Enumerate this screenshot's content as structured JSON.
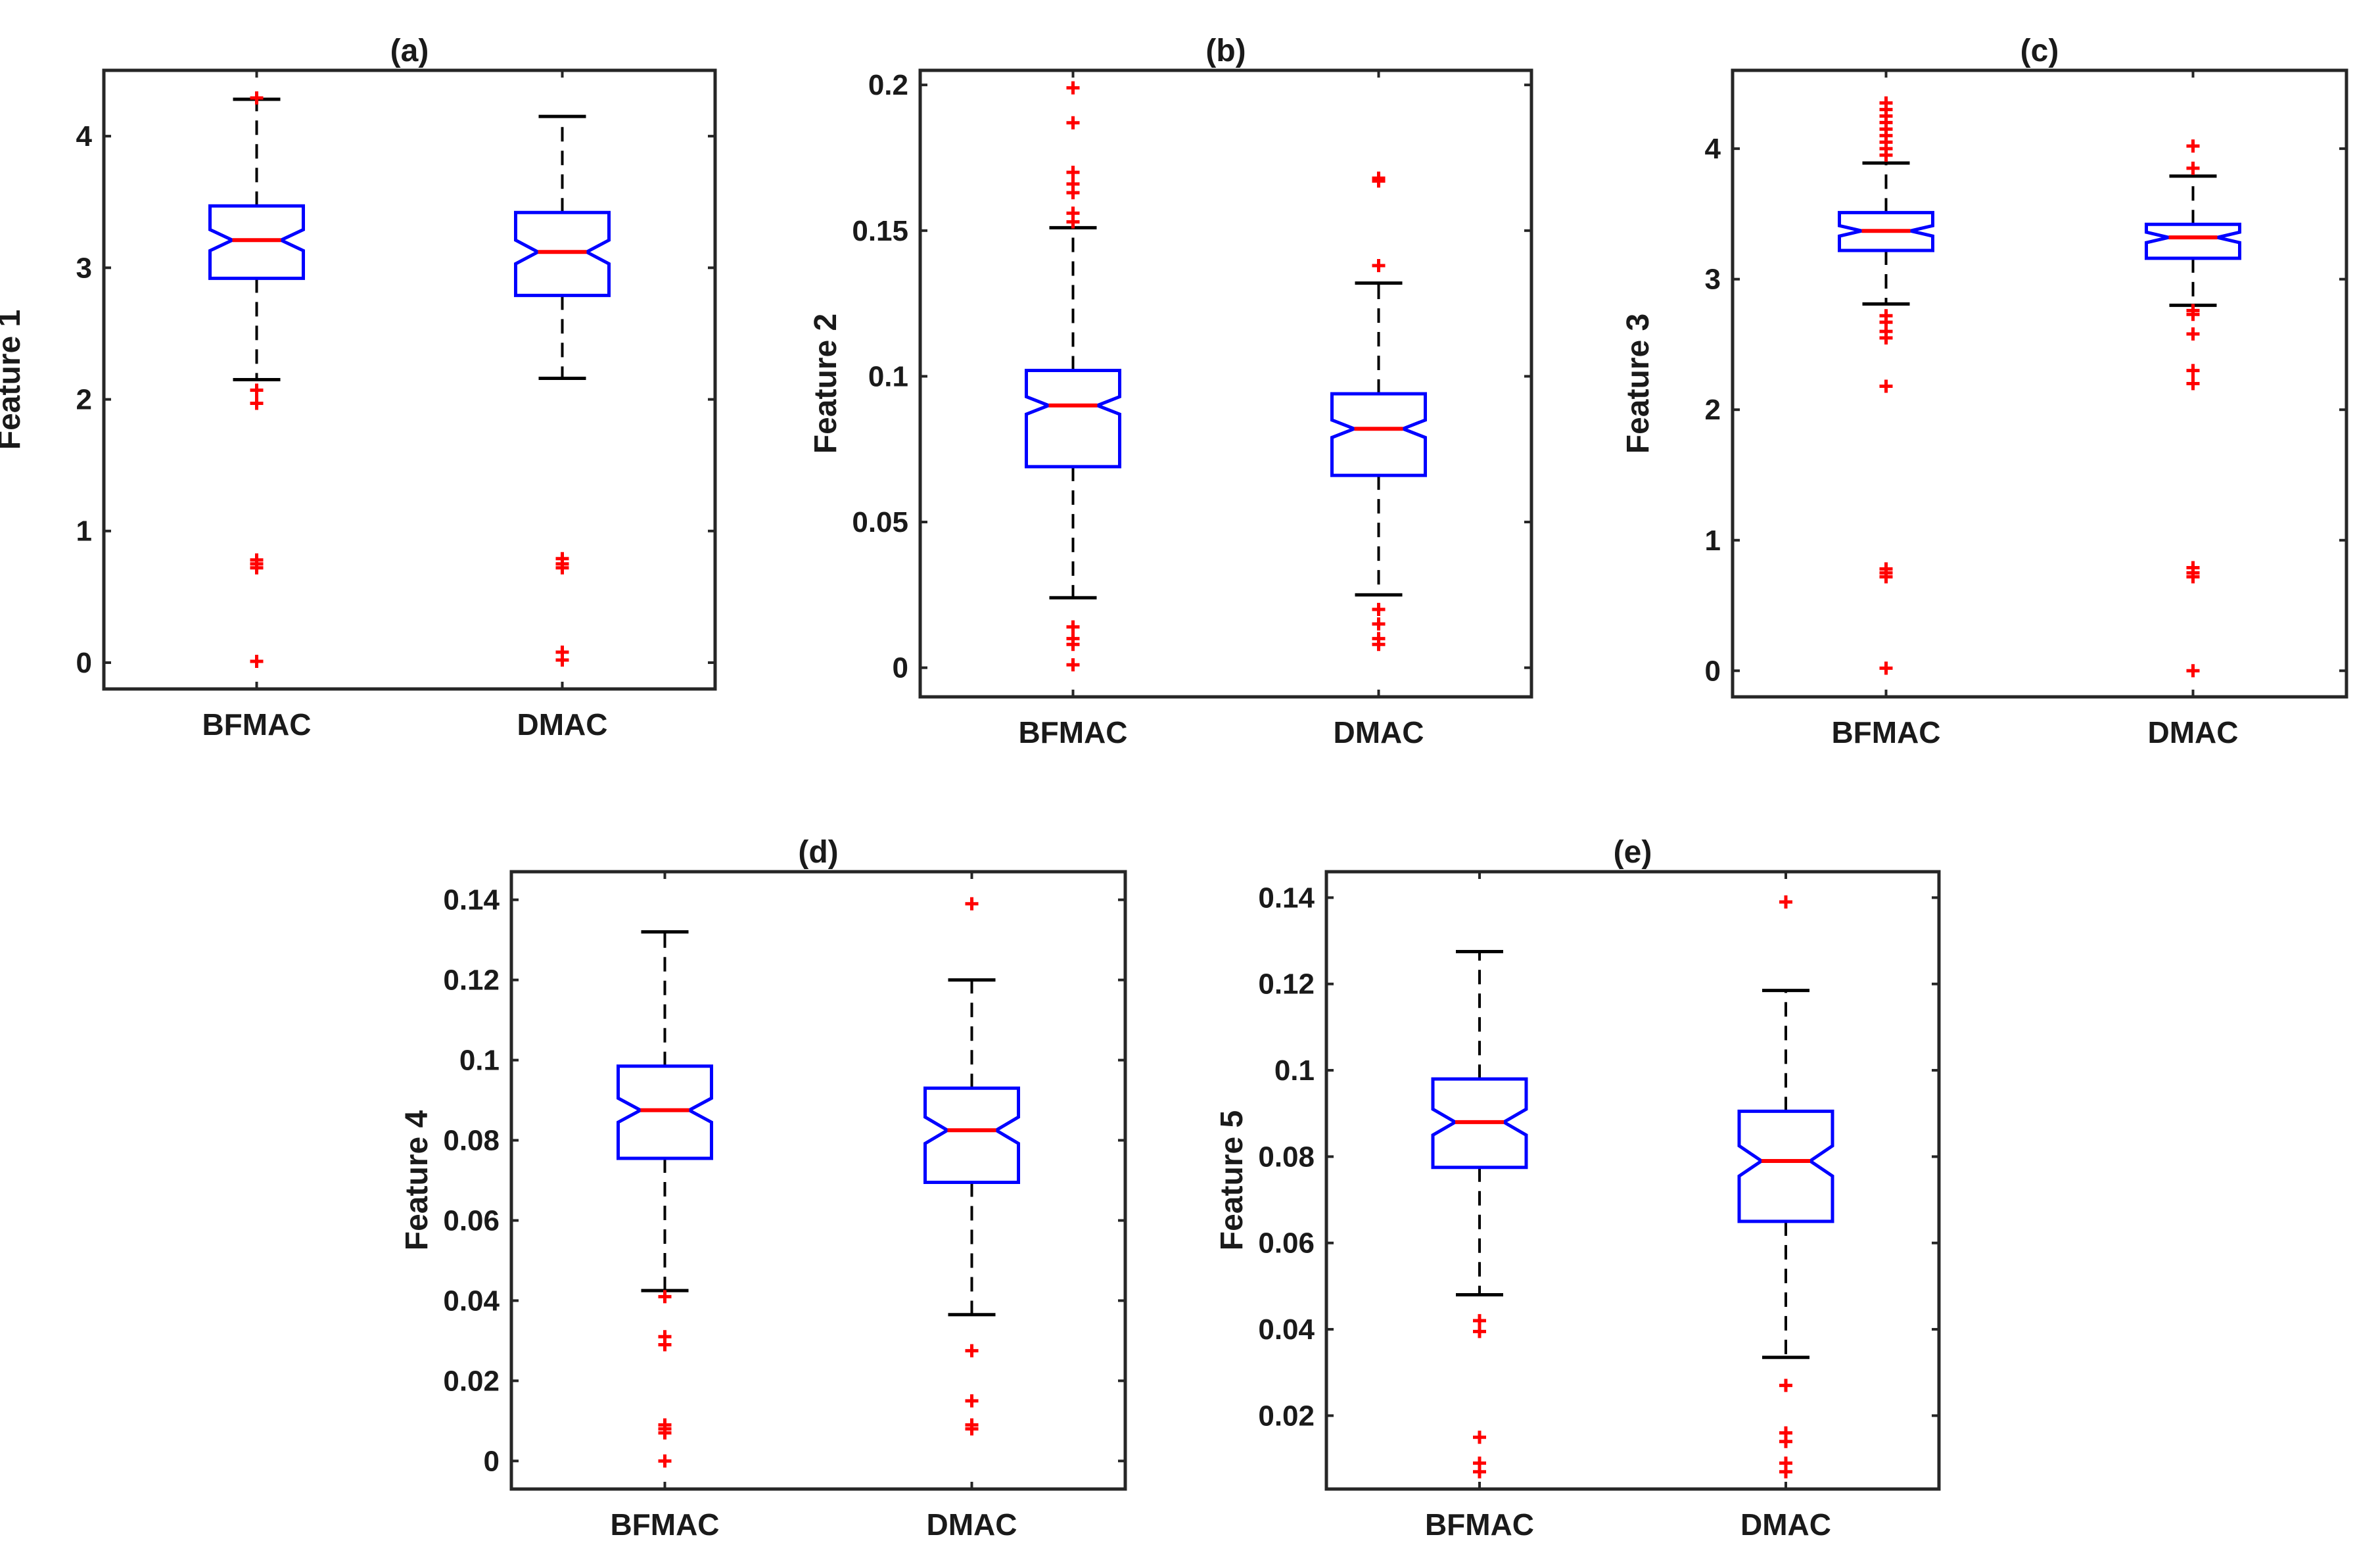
{
  "chart_data": [
    {
      "type": "boxplot",
      "title": "(a)",
      "ylabel": "Feature 1",
      "categories": [
        "BFMAC",
        "DMAC"
      ],
      "ylim": [
        -0.2,
        4.5
      ],
      "yticks": [
        0,
        1,
        2,
        3,
        4
      ],
      "ytick_labels": [
        "0",
        "1",
        "2",
        "3",
        "4"
      ],
      "boxes": [
        {
          "name": "BFMAC",
          "lower_whisker": 2.15,
          "q1": 2.92,
          "median": 3.21,
          "q3": 3.47,
          "notch_low": 3.13,
          "notch_high": 3.29,
          "upper_whisker": 4.28,
          "outliers": [
            4.29,
            2.07,
            1.97,
            0.78,
            0.75,
            0.72,
            0.01
          ]
        },
        {
          "name": "DMAC",
          "lower_whisker": 2.16,
          "q1": 2.79,
          "median": 3.12,
          "q3": 3.42,
          "notch_low": 3.03,
          "notch_high": 3.21,
          "upper_whisker": 4.15,
          "outliers": [
            0.79,
            0.75,
            0.72,
            0.08,
            0.02
          ]
        }
      ]
    },
    {
      "type": "boxplot",
      "title": "(b)",
      "ylabel": "Feature 2",
      "categories": [
        "BFMAC",
        "DMAC"
      ],
      "ylim": [
        -0.01,
        0.205
      ],
      "yticks": [
        0,
        0.05,
        0.1,
        0.15,
        0.2
      ],
      "ytick_labels": [
        "0",
        "0.05",
        "0.1",
        "0.15",
        "0.2"
      ],
      "boxes": [
        {
          "name": "BFMAC",
          "lower_whisker": 0.024,
          "q1": 0.069,
          "median": 0.09,
          "q3": 0.102,
          "notch_low": 0.087,
          "notch_high": 0.093,
          "upper_whisker": 0.151,
          "outliers": [
            0.199,
            0.187,
            0.17,
            0.166,
            0.163,
            0.156,
            0.153,
            0.014,
            0.01,
            0.008,
            0.001
          ]
        },
        {
          "name": "DMAC",
          "lower_whisker": 0.025,
          "q1": 0.066,
          "median": 0.082,
          "q3": 0.094,
          "notch_low": 0.079,
          "notch_high": 0.085,
          "upper_whisker": 0.132,
          "outliers": [
            0.168,
            0.167,
            0.138,
            0.02,
            0.015,
            0.01,
            0.008
          ]
        }
      ]
    },
    {
      "type": "boxplot",
      "title": "(c)",
      "ylabel": "Feature 3",
      "categories": [
        "BFMAC",
        "DMAC"
      ],
      "ylim": [
        -0.2,
        4.6
      ],
      "yticks": [
        0,
        1,
        2,
        3,
        4
      ],
      "ytick_labels": [
        "0",
        "1",
        "2",
        "3",
        "4"
      ],
      "boxes": [
        {
          "name": "BFMAC",
          "lower_whisker": 2.81,
          "q1": 3.22,
          "median": 3.37,
          "q3": 3.51,
          "notch_low": 3.33,
          "notch_high": 3.41,
          "upper_whisker": 3.89,
          "outliers": [
            4.35,
            4.3,
            4.25,
            4.2,
            4.15,
            4.1,
            4.05,
            4.0,
            3.95,
            2.72,
            2.67,
            2.6,
            2.55,
            2.18,
            0.78,
            0.75,
            0.72,
            0.02
          ]
        },
        {
          "name": "DMAC",
          "lower_whisker": 2.8,
          "q1": 3.16,
          "median": 3.32,
          "q3": 3.42,
          "notch_low": 3.28,
          "notch_high": 3.36,
          "upper_whisker": 3.79,
          "outliers": [
            4.02,
            3.85,
            2.76,
            2.73,
            2.58,
            2.3,
            2.2,
            0.79,
            0.75,
            0.72,
            0.0
          ]
        }
      ]
    },
    {
      "type": "boxplot",
      "title": "(d)",
      "ylabel": "Feature 4",
      "categories": [
        "BFMAC",
        "DMAC"
      ],
      "ylim": [
        -0.007,
        0.147
      ],
      "yticks": [
        0,
        0.02,
        0.04,
        0.06,
        0.08,
        0.1,
        0.12,
        0.14
      ],
      "ytick_labels": [
        "0",
        "0.02",
        "0.04",
        "0.06",
        "0.08",
        "0.1",
        "0.12",
        "0.14"
      ],
      "boxes": [
        {
          "name": "BFMAC",
          "lower_whisker": 0.0425,
          "q1": 0.0755,
          "median": 0.0875,
          "q3": 0.0985,
          "notch_low": 0.0845,
          "notch_high": 0.0905,
          "upper_whisker": 0.132,
          "outliers": [
            0.041,
            0.031,
            0.029,
            0.009,
            0.008,
            0.007,
            0.0
          ]
        },
        {
          "name": "DMAC",
          "lower_whisker": 0.0365,
          "q1": 0.0695,
          "median": 0.0825,
          "q3": 0.093,
          "notch_low": 0.0792,
          "notch_high": 0.0858,
          "upper_whisker": 0.12,
          "outliers": [
            0.139,
            0.0275,
            0.015,
            0.009,
            0.008
          ]
        }
      ]
    },
    {
      "type": "boxplot",
      "title": "(e)",
      "ylabel": "Feature 5",
      "categories": [
        "BFMAC",
        "DMAC"
      ],
      "ylim": [
        0.003,
        0.146
      ],
      "yticks": [
        0.02,
        0.04,
        0.06,
        0.08,
        0.1,
        0.12,
        0.14
      ],
      "ytick_labels": [
        "0.02",
        "0.04",
        "0.06",
        "0.08",
        "0.1",
        "0.12",
        "0.14"
      ],
      "boxes": [
        {
          "name": "BFMAC",
          "lower_whisker": 0.048,
          "q1": 0.0775,
          "median": 0.088,
          "q3": 0.098,
          "notch_low": 0.085,
          "notch_high": 0.091,
          "upper_whisker": 0.1275,
          "outliers": [
            0.042,
            0.0395,
            0.015,
            0.009,
            0.007
          ]
        },
        {
          "name": "DMAC",
          "lower_whisker": 0.0335,
          "q1": 0.065,
          "median": 0.079,
          "q3": 0.0905,
          "notch_low": 0.0755,
          "notch_high": 0.0825,
          "upper_whisker": 0.1185,
          "outliers": [
            0.139,
            0.027,
            0.016,
            0.014,
            0.009,
            0.007
          ]
        }
      ]
    }
  ],
  "colors": {
    "box": "#0000ff",
    "median": "#ff0000",
    "outlier": "#ff0000",
    "whisker": "#000000",
    "axes": "#262626"
  }
}
